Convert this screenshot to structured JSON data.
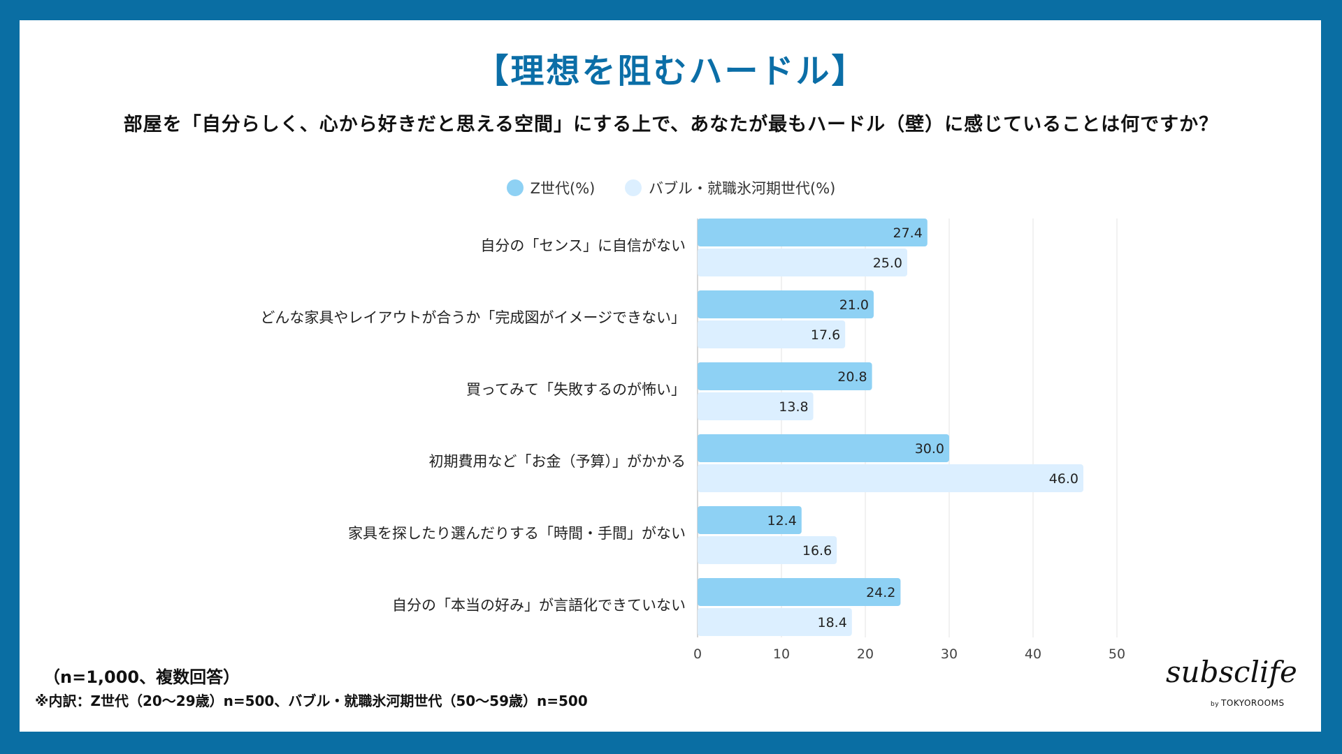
{
  "title": "【理想を阻むハードル】",
  "question": "部屋を「自分らしく、心から好きだと思える空間」にする上で、あなたが最もハードル（壁）に感じていることは何ですか？",
  "colors": {
    "frame": "#0a6ea3",
    "title": "#0b6ea7",
    "series_z": "#8ed1f4",
    "series_bubble": "#dcefff"
  },
  "chart_data": {
    "type": "bar",
    "orientation": "horizontal",
    "categories": [
      "自分の「センス」に自信がない",
      "どんな家具やレイアウトが合うか「完成図がイメージできない」",
      "買ってみて「失敗するのが怖い」",
      "初期費用など「お金（予算）」がかかる",
      "家具を探したり選んだりする「時間・手間」がない",
      "自分の「本当の好み」が言語化できていない"
    ],
    "series": [
      {
        "name": "Z世代(%)",
        "values": [
          27.4,
          21.0,
          20.8,
          30.0,
          12.4,
          24.2
        ],
        "labels": [
          "27.4",
          "21.0",
          "20.8",
          "30.0",
          "12.4",
          "24.2"
        ]
      },
      {
        "name": "バブル・就職氷河期世代(%)",
        "values": [
          25.0,
          17.6,
          13.8,
          46.0,
          16.6,
          18.4
        ],
        "labels": [
          "25.0",
          "17.6",
          "13.8",
          "46.0",
          "16.6",
          "18.4"
        ]
      }
    ],
    "xlim": [
      0,
      50
    ],
    "xticks": [
      "0",
      "10",
      "20",
      "30",
      "40",
      "50"
    ],
    "grid": true,
    "legend_position": "top-center"
  },
  "footnote": {
    "sample": "（n=1,000、複数回答）",
    "breakdown": "※内訳：Z世代（20〜29歳）n=500、バブル・就職氷河期世代（50〜59歳）n=500"
  },
  "logo": {
    "name": "subsclife",
    "by": "by",
    "company": "TOKYOROOMS"
  }
}
